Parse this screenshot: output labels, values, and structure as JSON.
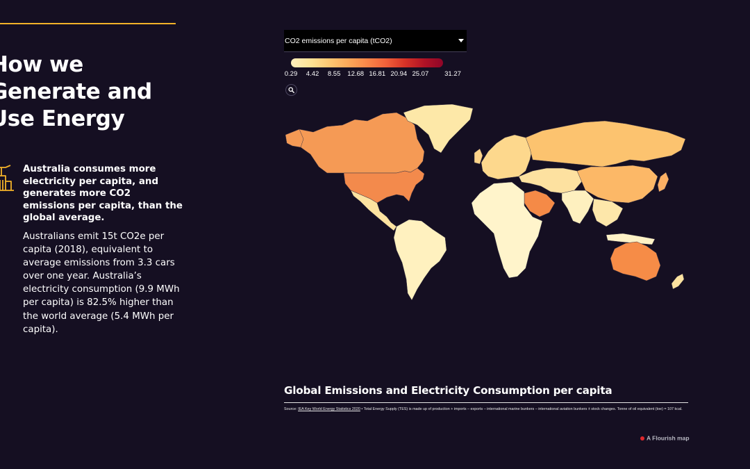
{
  "article": {
    "headline_lines": [
      "How we",
      "Generate and",
      "Use Energy"
    ],
    "lead": "Australia consumes more electricity per capita, and generates more CO2 emissions per capita, than the global average.",
    "body": "Australians emit 15t CO2e per capita (2018), equivalent to average emissions from 3.3 cars over one year. Australia’s electricity consumption (9.9 MWh per capita) is 82.5% higher than the world average (5.4 MWh per capita).",
    "icon": "power-plant-icon",
    "accent_color": "#f3b229"
  },
  "map": {
    "metric_select": {
      "selected": "CO2 emissions per capita (tCO2)",
      "icon": "caret-down-icon"
    },
    "legend": {
      "ticks": [
        "0.29",
        "4.42",
        "8.55",
        "12.68",
        "16.81",
        "20.94",
        "25.07",
        "31.27"
      ],
      "tick_values": [
        0.29,
        4.42,
        8.55,
        12.68,
        16.81,
        20.94,
        25.07,
        31.27
      ],
      "min": 0.29,
      "max": 31.27,
      "color_stops": [
        "#fff0bd",
        "#fee397",
        "#fdc873",
        "#fda95a",
        "#f98649",
        "#f1603a",
        "#d63227",
        "#b11326",
        "#8f0528"
      ]
    },
    "zoom_icon": "search-icon",
    "background": "#150f22",
    "title": "Global Emissions and Electricity Consumption per capita",
    "source_label": "Source:",
    "source_link": "IEA Key World Energy Statistics 2020",
    "source_text": " • Total Energy Supply (TES) is made up of production + imports – exports – international marine bunkers – international aviation bunkers ± stock changes. Tonne of oil equivalent (toe) = 107 kcal.",
    "credit": "A Flourish map",
    "credit_color": "#e0282d"
  }
}
